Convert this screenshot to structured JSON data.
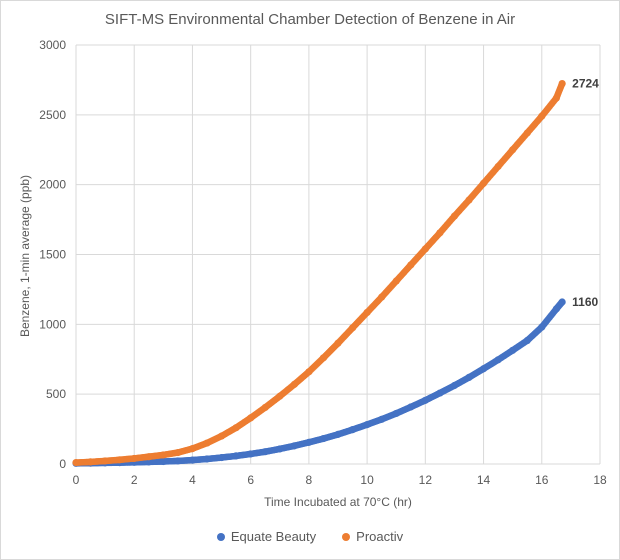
{
  "chart_data": {
    "type": "scatter",
    "title": "SIFT-MS Environmental Chamber Detection of Benzene in Air",
    "xlabel": "Time Incubated at 70°C (hr)",
    "ylabel": "Benzene, 1-min average (ppb)",
    "xlim": [
      0,
      18
    ],
    "ylim": [
      0,
      3000
    ],
    "xticks": [
      0,
      2,
      4,
      6,
      8,
      10,
      12,
      14,
      16,
      18
    ],
    "yticks": [
      0,
      500,
      1000,
      1500,
      2000,
      2500,
      3000
    ],
    "grid": true,
    "legend_position": "bottom",
    "series": [
      {
        "name": "Equate Beauty",
        "color": "#4472C4",
        "end_label": "1160",
        "x": [
          0,
          0.5,
          1,
          1.5,
          2,
          2.5,
          3,
          3.5,
          4,
          4.5,
          5,
          5.5,
          6,
          6.5,
          7,
          7.5,
          8,
          8.5,
          9,
          9.5,
          10,
          10.5,
          11,
          11.5,
          12,
          12.5,
          13,
          13.5,
          14,
          14.5,
          15,
          15.5,
          16,
          16.5,
          16.7
        ],
        "y": [
          5,
          6,
          8,
          10,
          12,
          15,
          18,
          22,
          28,
          36,
          46,
          58,
          72,
          88,
          108,
          130,
          155,
          182,
          212,
          246,
          282,
          320,
          362,
          408,
          456,
          508,
          562,
          620,
          682,
          746,
          814,
          884,
          980,
          1110,
          1160
        ]
      },
      {
        "name": "Proactiv",
        "color": "#ED7D31",
        "end_label": "2724",
        "x": [
          0,
          0.5,
          1,
          1.5,
          2,
          2.5,
          3,
          3.5,
          4,
          4.5,
          5,
          5.5,
          6,
          6.5,
          7,
          7.5,
          8,
          8.5,
          9,
          9.5,
          10,
          10.5,
          11,
          11.5,
          12,
          12.5,
          13,
          13.5,
          14,
          14.5,
          15,
          15.5,
          16,
          16.5,
          16.7
        ],
        "y": [
          10,
          15,
          22,
          30,
          40,
          52,
          65,
          82,
          110,
          150,
          200,
          260,
          330,
          405,
          485,
          570,
          660,
          760,
          865,
          975,
          1085,
          1195,
          1310,
          1425,
          1540,
          1655,
          1775,
          1890,
          2010,
          2130,
          2250,
          2370,
          2490,
          2620,
          2724
        ]
      }
    ]
  }
}
